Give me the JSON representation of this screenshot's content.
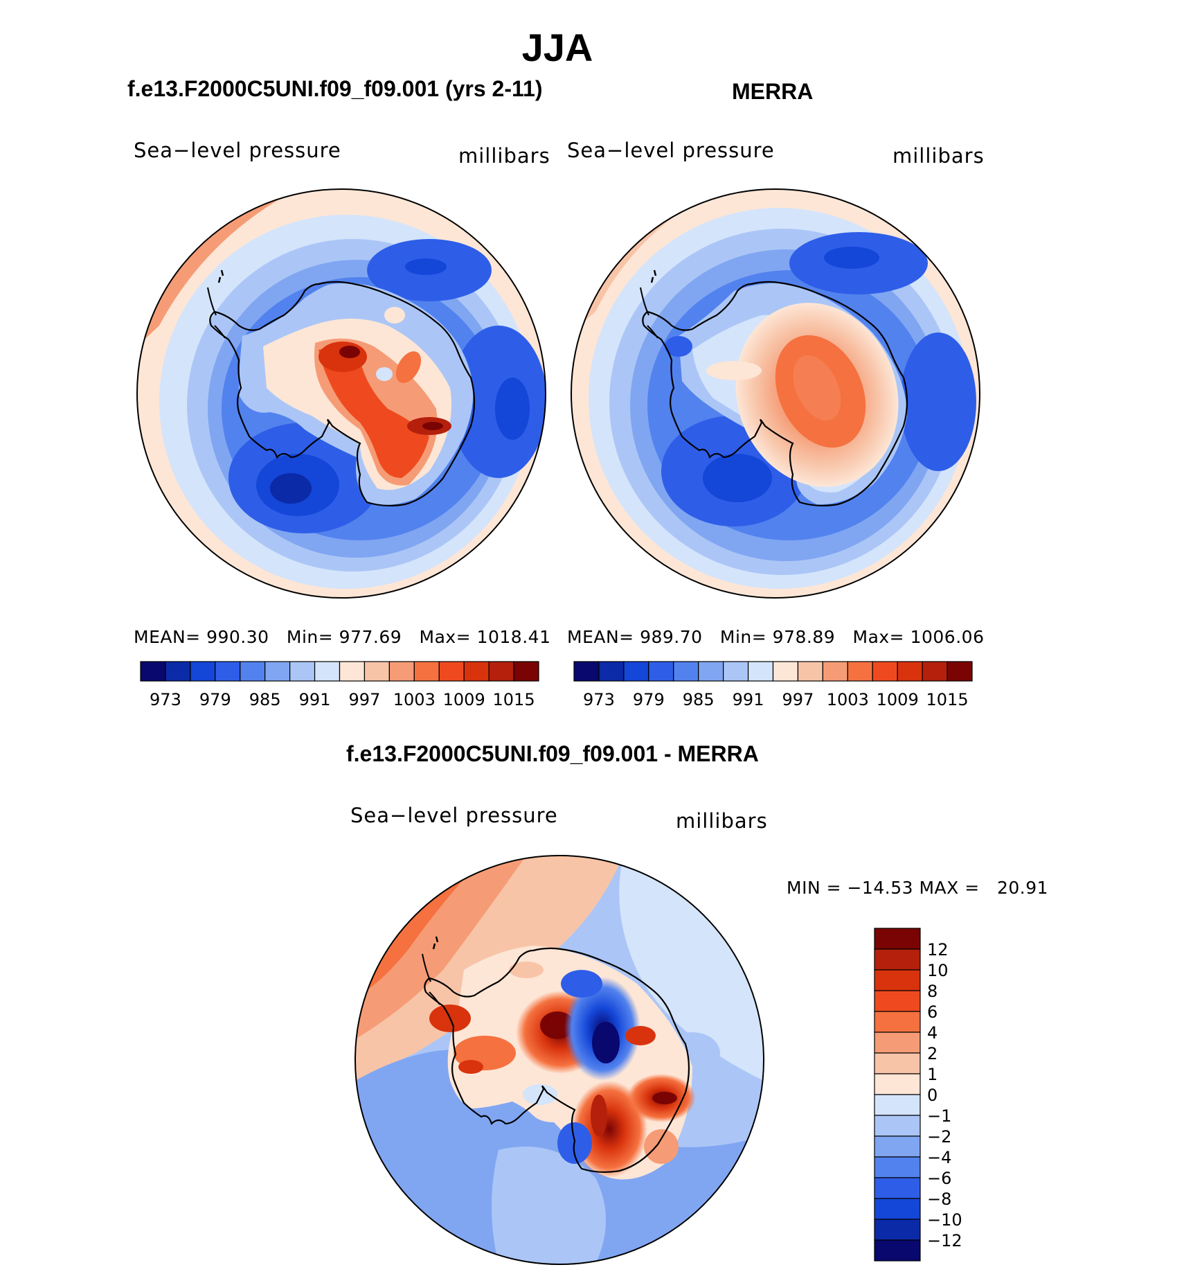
{
  "title": "JJA",
  "panels": [
    {
      "header": "f.e13.F2000C5UNI.f09_f09.001 (yrs 2-11)",
      "left_label": "Sea−level pressure",
      "right_label": "millibars",
      "stats": {
        "mean_label": "MEAN=",
        "mean": "990.30",
        "min_label": "Min=",
        "min": "977.69",
        "max_label": "Max=",
        "max": "1018.41"
      }
    },
    {
      "header": "MERRA",
      "left_label": "Sea−level pressure",
      "right_label": "millibars",
      "stats": {
        "mean_label": "MEAN=",
        "mean": "989.70",
        "min_label": "Min=",
        "min": "978.89",
        "max_label": "Max=",
        "max": "1006.06"
      }
    }
  ],
  "diff_panel": {
    "header": "f.e13.F2000C5UNI.f09_f09.001 - MERRA",
    "left_label": "Sea−level pressure",
    "right_label": "millibars",
    "minmax_text": "MIN = −14.53 MAX =   20.91"
  },
  "chart_data": [
    {
      "type": "map",
      "title": "f.e13.F2000C5UNI.f09_f09.001 (yrs 2-11)",
      "variable": "Sea-level pressure",
      "units": "millibars",
      "projection": "south polar stereographic",
      "mean": 990.3,
      "min": 977.69,
      "max": 1018.41,
      "colorbar_ticks": [
        "973",
        "979",
        "985",
        "991",
        "997",
        "1003",
        "1009",
        "1015"
      ]
    },
    {
      "type": "map",
      "title": "MERRA",
      "variable": "Sea-level pressure",
      "units": "millibars",
      "projection": "south polar stereographic",
      "mean": 989.7,
      "min": 978.89,
      "max": 1006.06,
      "colorbar_ticks": [
        "973",
        "979",
        "985",
        "991",
        "997",
        "1003",
        "1009",
        "1015"
      ]
    },
    {
      "type": "map",
      "title": "f.e13.F2000C5UNI.f09_f09.001 - MERRA",
      "variable": "Sea-level pressure",
      "units": "millibars",
      "projection": "south polar stereographic",
      "min": -14.53,
      "max": 20.91,
      "colorbar_ticks": [
        "12",
        "10",
        "8",
        "6",
        "4",
        "2",
        "1",
        "0",
        "−1",
        "−2",
        "−4",
        "−6",
        "−8",
        "−10",
        "−12"
      ]
    }
  ],
  "colors": {
    "abs_scale": [
      "#08086e",
      "#0b2aa8",
      "#1446d8",
      "#2e5ee8",
      "#5282ee",
      "#80a6f2",
      "#abc6f6",
      "#d4e4fb",
      "#fde6d6",
      "#f8c4a8",
      "#f59c76",
      "#f5713f",
      "#ef4a1f",
      "#d8330d",
      "#b4200b",
      "#7a0404"
    ],
    "diff_scale": [
      "#7a0404",
      "#b4200b",
      "#d8330d",
      "#ef4a1f",
      "#f5713f",
      "#f59c76",
      "#f8c4a8",
      "#fde6d6",
      "#d4e4fb",
      "#abc6f6",
      "#80a6f2",
      "#5282ee",
      "#2e5ee8",
      "#1446d8",
      "#0b2aa8",
      "#08086e"
    ]
  }
}
